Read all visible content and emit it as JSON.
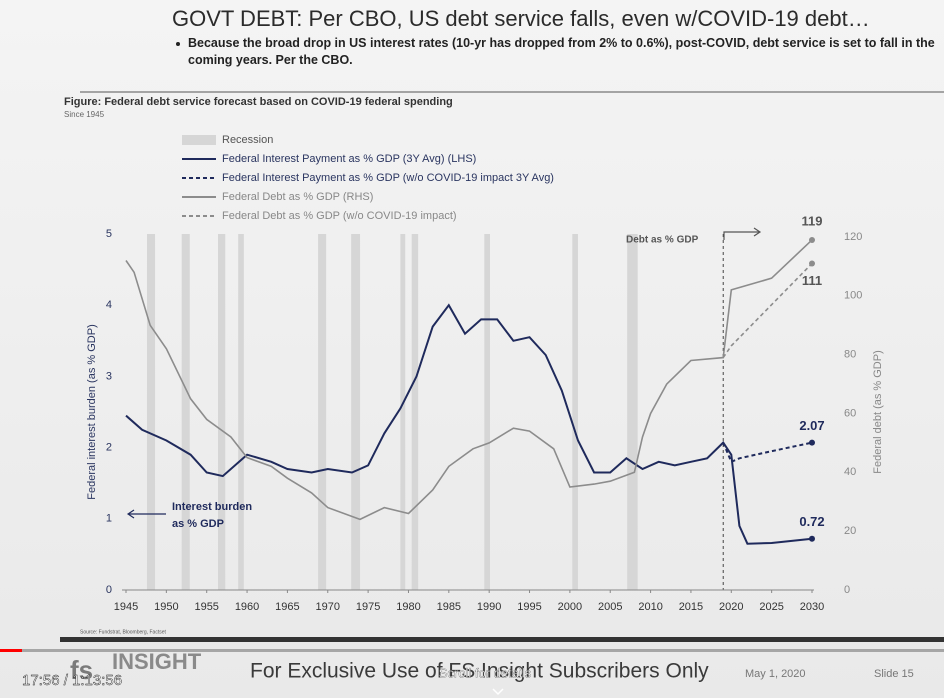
{
  "slide": {
    "title": "GOVT DEBT: Per CBO, US debt service falls, even w/COVID-19 debt…",
    "bullet": "Because the broad drop in US interest rates (10-yr has dropped from 2% to 0.6%), post-COVID,  debt service is set to fall in the coming years.  Per the CBO.",
    "source": "Source: Fundstrat, Bloomberg, Factset",
    "footer": {
      "brand": "INSIGHT",
      "logo": "fs",
      "tagline": "For Exclusive Use of FS Insight Subscribers Only",
      "date": "May 1, 2020",
      "slide": "Slide 15"
    }
  },
  "player": {
    "time": "17:56 / 1:13:56",
    "overlay": "Scroll for details"
  },
  "chart_data": {
    "type": "line",
    "title": "Figure: Federal debt service forecast based on COVID-19 federal spending",
    "subtitle": "Since 1945",
    "y_label": "Federal interest burden (as % GDP)",
    "y2_label": "Federal debt (as % GDP)",
    "legend": "upper left",
    "xlim": [
      1945,
      2030
    ],
    "xticks": [
      1945,
      1950,
      1955,
      1960,
      1965,
      1970,
      1975,
      1980,
      1985,
      1990,
      1995,
      2000,
      2005,
      2010,
      2015,
      2020,
      2025,
      2030
    ],
    "ylim": [
      0,
      5
    ],
    "yticks": [
      0,
      1,
      2,
      3,
      4,
      5
    ],
    "y2lim": [
      0,
      120
    ],
    "y2ticks": [
      0,
      20,
      40,
      60,
      80,
      100,
      120
    ],
    "recession": {
      "name": "Recession",
      "color": "#d6d6d6",
      "periods": [
        [
          1947.6,
          1948.6
        ],
        [
          1951.9,
          1952.9
        ],
        [
          1956.4,
          1957.3
        ],
        [
          1958.9,
          1959.6
        ],
        [
          1968.8,
          1969.8
        ],
        [
          1972.9,
          1974
        ],
        [
          1979,
          1979.6
        ],
        [
          1980.4,
          1981.2
        ],
        [
          1989.4,
          1990.1
        ],
        [
          2000.3,
          2001
        ],
        [
          2007.1,
          2008.4
        ]
      ]
    },
    "forecast_start": 2019,
    "series": [
      {
        "name": "Federal Interest Payment as % GDP (3Y Avg) (LHS)",
        "color": "#1f2a5c",
        "dashed": false,
        "x": [
          1945,
          1947,
          1950,
          1953,
          1955,
          1957,
          1960,
          1963,
          1965,
          1968,
          1970,
          1973,
          1975,
          1977,
          1979,
          1981,
          1983,
          1985,
          1987,
          1989,
          1991,
          1993,
          1995,
          1997,
          1999,
          2001,
          2003,
          2005,
          2007,
          2009,
          2011,
          2013,
          2015,
          2017,
          2019,
          2020,
          2021,
          2022,
          2025,
          2030
        ],
        "values": [
          2.45,
          2.25,
          2.1,
          1.9,
          1.65,
          1.6,
          1.9,
          1.8,
          1.7,
          1.65,
          1.7,
          1.65,
          1.75,
          2.2,
          2.55,
          3.0,
          3.7,
          4.0,
          3.6,
          3.8,
          3.8,
          3.5,
          3.55,
          3.3,
          2.8,
          2.1,
          1.65,
          1.65,
          1.85,
          1.7,
          1.8,
          1.75,
          1.8,
          1.85,
          2.07,
          1.9,
          0.9,
          0.65,
          0.66,
          0.72
        ],
        "value_labels": [
          null,
          null,
          null,
          null,
          null,
          null,
          null,
          null,
          null,
          null,
          null,
          null,
          null,
          null,
          null,
          null,
          null,
          null,
          null,
          null,
          null,
          null,
          null,
          null,
          null,
          null,
          null,
          null,
          null,
          null,
          null,
          null,
          null,
          null,
          null,
          null,
          null,
          null,
          null,
          "0.72"
        ]
      },
      {
        "name": "Federal Interest Payment as % GDP (w/o COVID-19 impact  3Y Avg)",
        "color": "#1f2a5c",
        "dashed": true,
        "x": [
          2019,
          2020,
          2021,
          2025,
          2030
        ],
        "values": [
          2.07,
          1.8,
          1.85,
          1.95,
          2.07
        ],
        "value_labels": [
          null,
          null,
          null,
          null,
          "2.07"
        ]
      },
      {
        "name": "Federal Debt as % GDP (RHS)",
        "color": "#8c8c8c",
        "dashed": false,
        "axis": "y2",
        "x": [
          1945,
          1946,
          1948,
          1950,
          1953,
          1955,
          1958,
          1960,
          1963,
          1965,
          1968,
          1970,
          1974,
          1977,
          1980,
          1983,
          1985,
          1988,
          1990,
          1993,
          1995,
          1998,
          2000,
          2003,
          2005,
          2008,
          2009,
          2010,
          2012,
          2015,
          2019,
          2020,
          2025,
          2030
        ],
        "values": [
          112,
          108,
          90,
          82,
          65,
          58,
          52,
          45,
          42,
          38,
          33,
          28,
          24,
          28,
          26,
          34,
          42,
          48,
          50,
          55,
          54,
          48,
          35,
          36,
          37,
          40,
          52,
          60,
          70,
          78,
          79,
          102,
          106,
          119
        ],
        "value_labels": [
          null,
          null,
          null,
          null,
          null,
          null,
          null,
          null,
          null,
          null,
          null,
          null,
          null,
          null,
          null,
          null,
          null,
          null,
          null,
          null,
          null,
          null,
          null,
          null,
          null,
          null,
          null,
          null,
          null,
          null,
          null,
          null,
          null,
          "119"
        ]
      },
      {
        "name": "Federal Debt as % GDP (w/o COVID-19 impact)",
        "color": "#8c8c8c",
        "dashed": true,
        "axis": "y2",
        "x": [
          2019,
          2020,
          2025,
          2030
        ],
        "values": [
          79,
          83,
          97,
          111
        ],
        "value_labels": [
          null,
          null,
          null,
          "111"
        ]
      }
    ],
    "annotations": [
      "Debt as % GDP",
      "Interest burden",
      "as % GDP"
    ]
  }
}
